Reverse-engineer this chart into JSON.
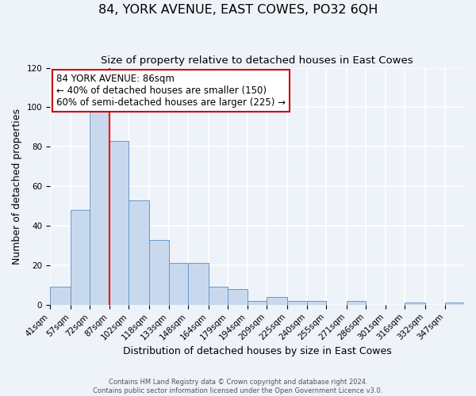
{
  "title": "84, YORK AVENUE, EAST COWES, PO32 6QH",
  "subtitle": "Size of property relative to detached houses in East Cowes",
  "xlabel": "Distribution of detached houses by size in East Cowes",
  "ylabel": "Number of detached properties",
  "footer_line1": "Contains HM Land Registry data © Crown copyright and database right 2024.",
  "footer_line2": "Contains public sector information licensed under the Open Government Licence v3.0.",
  "bin_labels": [
    "41sqm",
    "57sqm",
    "72sqm",
    "87sqm",
    "102sqm",
    "118sqm",
    "133sqm",
    "148sqm",
    "164sqm",
    "179sqm",
    "194sqm",
    "209sqm",
    "225sqm",
    "240sqm",
    "255sqm",
    "271sqm",
    "286sqm",
    "301sqm",
    "316sqm",
    "332sqm",
    "347sqm"
  ],
  "bin_edges": [
    41,
    57,
    72,
    87,
    102,
    118,
    133,
    148,
    164,
    179,
    194,
    209,
    225,
    240,
    255,
    271,
    286,
    301,
    316,
    332,
    347
  ],
  "bar_heights": [
    9,
    48,
    100,
    83,
    53,
    33,
    21,
    21,
    9,
    8,
    2,
    4,
    2,
    2,
    0,
    2,
    0,
    0,
    1,
    0,
    1
  ],
  "bar_fill_color": "#c9d9ed",
  "bar_edge_color": "#6699cc",
  "ylim": [
    0,
    120
  ],
  "yticks": [
    0,
    20,
    40,
    60,
    80,
    100,
    120
  ],
  "red_line_x": 87,
  "annotation_title": "84 YORK AVENUE: 86sqm",
  "annotation_line2": "← 40% of detached houses are smaller (150)",
  "annotation_line3": "60% of semi-detached houses are larger (225) →",
  "annotation_box_color": "#ffffff",
  "annotation_box_edge_color": "#cc0000",
  "background_color": "#eef2f9",
  "grid_color": "#ffffff",
  "title_fontsize": 11.5,
  "subtitle_fontsize": 9.5,
  "axis_label_fontsize": 9,
  "tick_fontsize": 7.5,
  "annotation_fontsize": 8.5
}
